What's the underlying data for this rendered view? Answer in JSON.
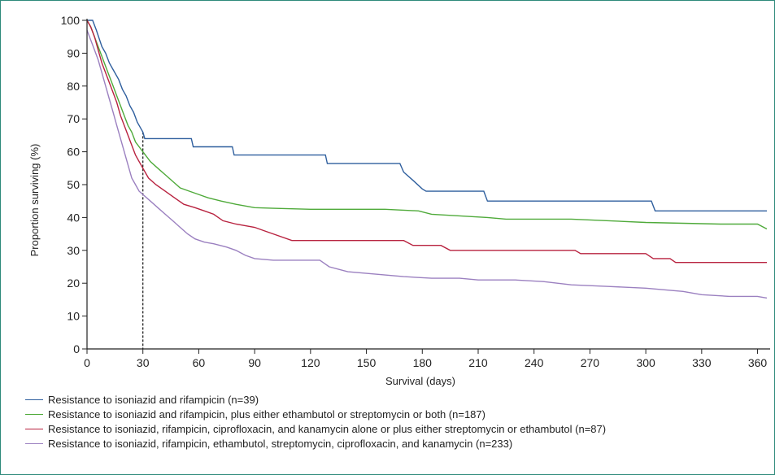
{
  "chart_data": {
    "type": "line",
    "title": "",
    "xlabel": "Survival (days)",
    "ylabel": "Proportion surviving (%)",
    "xlim": [
      0,
      365
    ],
    "ylim": [
      0,
      100
    ],
    "x_ticks": [
      0,
      30,
      60,
      90,
      120,
      150,
      180,
      210,
      240,
      270,
      300,
      330,
      360
    ],
    "y_ticks": [
      0,
      10,
      20,
      30,
      40,
      50,
      60,
      70,
      80,
      90,
      100
    ],
    "grid": false,
    "legend_position": "bottom",
    "reference_line": {
      "x": 30,
      "style": "dashed"
    },
    "series": [
      {
        "name": "Resistance to isoniazid and rifampicin (n=39)",
        "color": "#2f5f9e",
        "points": [
          [
            0,
            100
          ],
          [
            3,
            100
          ],
          [
            5,
            97
          ],
          [
            8,
            92
          ],
          [
            10,
            90
          ],
          [
            12,
            87
          ],
          [
            14,
            85
          ],
          [
            17,
            82
          ],
          [
            19,
            79
          ],
          [
            21,
            77
          ],
          [
            23,
            74
          ],
          [
            25,
            72
          ],
          [
            27,
            69
          ],
          [
            29,
            67
          ],
          [
            30,
            66
          ],
          [
            31,
            64
          ],
          [
            56,
            64
          ],
          [
            57,
            61.5
          ],
          [
            78,
            61.5
          ],
          [
            79,
            59
          ],
          [
            128,
            59
          ],
          [
            129,
            56.4
          ],
          [
            168,
            56.4
          ],
          [
            170,
            53.8
          ],
          [
            175,
            51.3
          ],
          [
            180,
            48.7
          ],
          [
            182,
            48
          ],
          [
            213,
            48
          ],
          [
            215,
            45
          ],
          [
            303,
            45
          ],
          [
            305,
            42
          ],
          [
            365,
            42
          ]
        ]
      },
      {
        "name": "Resistance to isoniazid and rifampicin, plus either ethambutol or streptomycin or both (n=187)",
        "color": "#4faa3a",
        "points": [
          [
            0,
            100
          ],
          [
            2,
            98
          ],
          [
            4,
            95
          ],
          [
            6,
            92
          ],
          [
            8,
            89
          ],
          [
            10,
            86
          ],
          [
            12,
            83
          ],
          [
            14,
            80
          ],
          [
            16,
            77
          ],
          [
            18,
            74
          ],
          [
            20,
            71
          ],
          [
            22,
            68
          ],
          [
            24,
            66
          ],
          [
            26,
            63
          ],
          [
            28,
            61.5
          ],
          [
            30,
            60
          ],
          [
            34,
            57
          ],
          [
            38,
            55
          ],
          [
            42,
            53
          ],
          [
            46,
            51
          ],
          [
            50,
            49
          ],
          [
            55,
            48
          ],
          [
            60,
            47
          ],
          [
            65,
            46
          ],
          [
            72,
            45
          ],
          [
            80,
            44
          ],
          [
            90,
            43
          ],
          [
            100,
            42.8
          ],
          [
            120,
            42.5
          ],
          [
            140,
            42.5
          ],
          [
            160,
            42.5
          ],
          [
            178,
            42
          ],
          [
            185,
            41
          ],
          [
            200,
            40.5
          ],
          [
            215,
            40
          ],
          [
            225,
            39.5
          ],
          [
            260,
            39.5
          ],
          [
            300,
            38.5
          ],
          [
            340,
            38
          ],
          [
            360,
            38
          ],
          [
            365,
            36.5
          ]
        ]
      },
      {
        "name": "Resistance to isoniazid, rifampicin, ciprofloxacin, and kanamycin alone or plus either streptomycin or ethambutol (n=87)",
        "color": "#b8223f",
        "points": [
          [
            0,
            100
          ],
          [
            2,
            98
          ],
          [
            4,
            95
          ],
          [
            6,
            91
          ],
          [
            8,
            87
          ],
          [
            10,
            84
          ],
          [
            12,
            81
          ],
          [
            14,
            78
          ],
          [
            16,
            75
          ],
          [
            18,
            71
          ],
          [
            20,
            68
          ],
          [
            22,
            65
          ],
          [
            24,
            62
          ],
          [
            26,
            59
          ],
          [
            28,
            57
          ],
          [
            30,
            55
          ],
          [
            33,
            52
          ],
          [
            37,
            50
          ],
          [
            42,
            48
          ],
          [
            47,
            46
          ],
          [
            52,
            44
          ],
          [
            58,
            43
          ],
          [
            63,
            42
          ],
          [
            68,
            41
          ],
          [
            73,
            39
          ],
          [
            80,
            38
          ],
          [
            90,
            37
          ],
          [
            95,
            36
          ],
          [
            100,
            35
          ],
          [
            110,
            33
          ],
          [
            120,
            33
          ],
          [
            170,
            33
          ],
          [
            175,
            31.5
          ],
          [
            190,
            31.5
          ],
          [
            195,
            30
          ],
          [
            262,
            30
          ],
          [
            265,
            29
          ],
          [
            300,
            29
          ],
          [
            304,
            27.5
          ],
          [
            313,
            27.5
          ],
          [
            316,
            26.3
          ],
          [
            365,
            26.3
          ]
        ]
      },
      {
        "name": "Resistance to isoniazid, rifampicin, ethambutol, streptomycin, ciprofloxacin, and kanamycin (n=233)",
        "color": "#9b80c0",
        "points": [
          [
            0,
            97
          ],
          [
            2,
            94
          ],
          [
            4,
            91
          ],
          [
            6,
            88
          ],
          [
            8,
            84
          ],
          [
            10,
            80
          ],
          [
            12,
            76
          ],
          [
            14,
            72
          ],
          [
            16,
            68
          ],
          [
            18,
            64
          ],
          [
            20,
            60
          ],
          [
            22,
            56
          ],
          [
            24,
            52
          ],
          [
            26,
            50
          ],
          [
            28,
            48
          ],
          [
            30,
            47
          ],
          [
            34,
            45
          ],
          [
            38,
            43
          ],
          [
            42,
            41
          ],
          [
            46,
            39
          ],
          [
            50,
            37
          ],
          [
            54,
            35
          ],
          [
            58,
            33.5
          ],
          [
            63,
            32.5
          ],
          [
            68,
            32
          ],
          [
            75,
            31
          ],
          [
            80,
            30
          ],
          [
            85,
            28.5
          ],
          [
            90,
            27.5
          ],
          [
            100,
            27
          ],
          [
            115,
            27
          ],
          [
            125,
            27
          ],
          [
            130,
            25
          ],
          [
            140,
            23.5
          ],
          [
            150,
            23
          ],
          [
            160,
            22.5
          ],
          [
            170,
            22
          ],
          [
            185,
            21.5
          ],
          [
            200,
            21.5
          ],
          [
            210,
            21
          ],
          [
            230,
            21
          ],
          [
            245,
            20.5
          ],
          [
            260,
            19.5
          ],
          [
            280,
            19
          ],
          [
            300,
            18.5
          ],
          [
            320,
            17.5
          ],
          [
            330,
            16.5
          ],
          [
            345,
            16
          ],
          [
            360,
            16
          ],
          [
            365,
            15.5
          ]
        ]
      }
    ]
  }
}
